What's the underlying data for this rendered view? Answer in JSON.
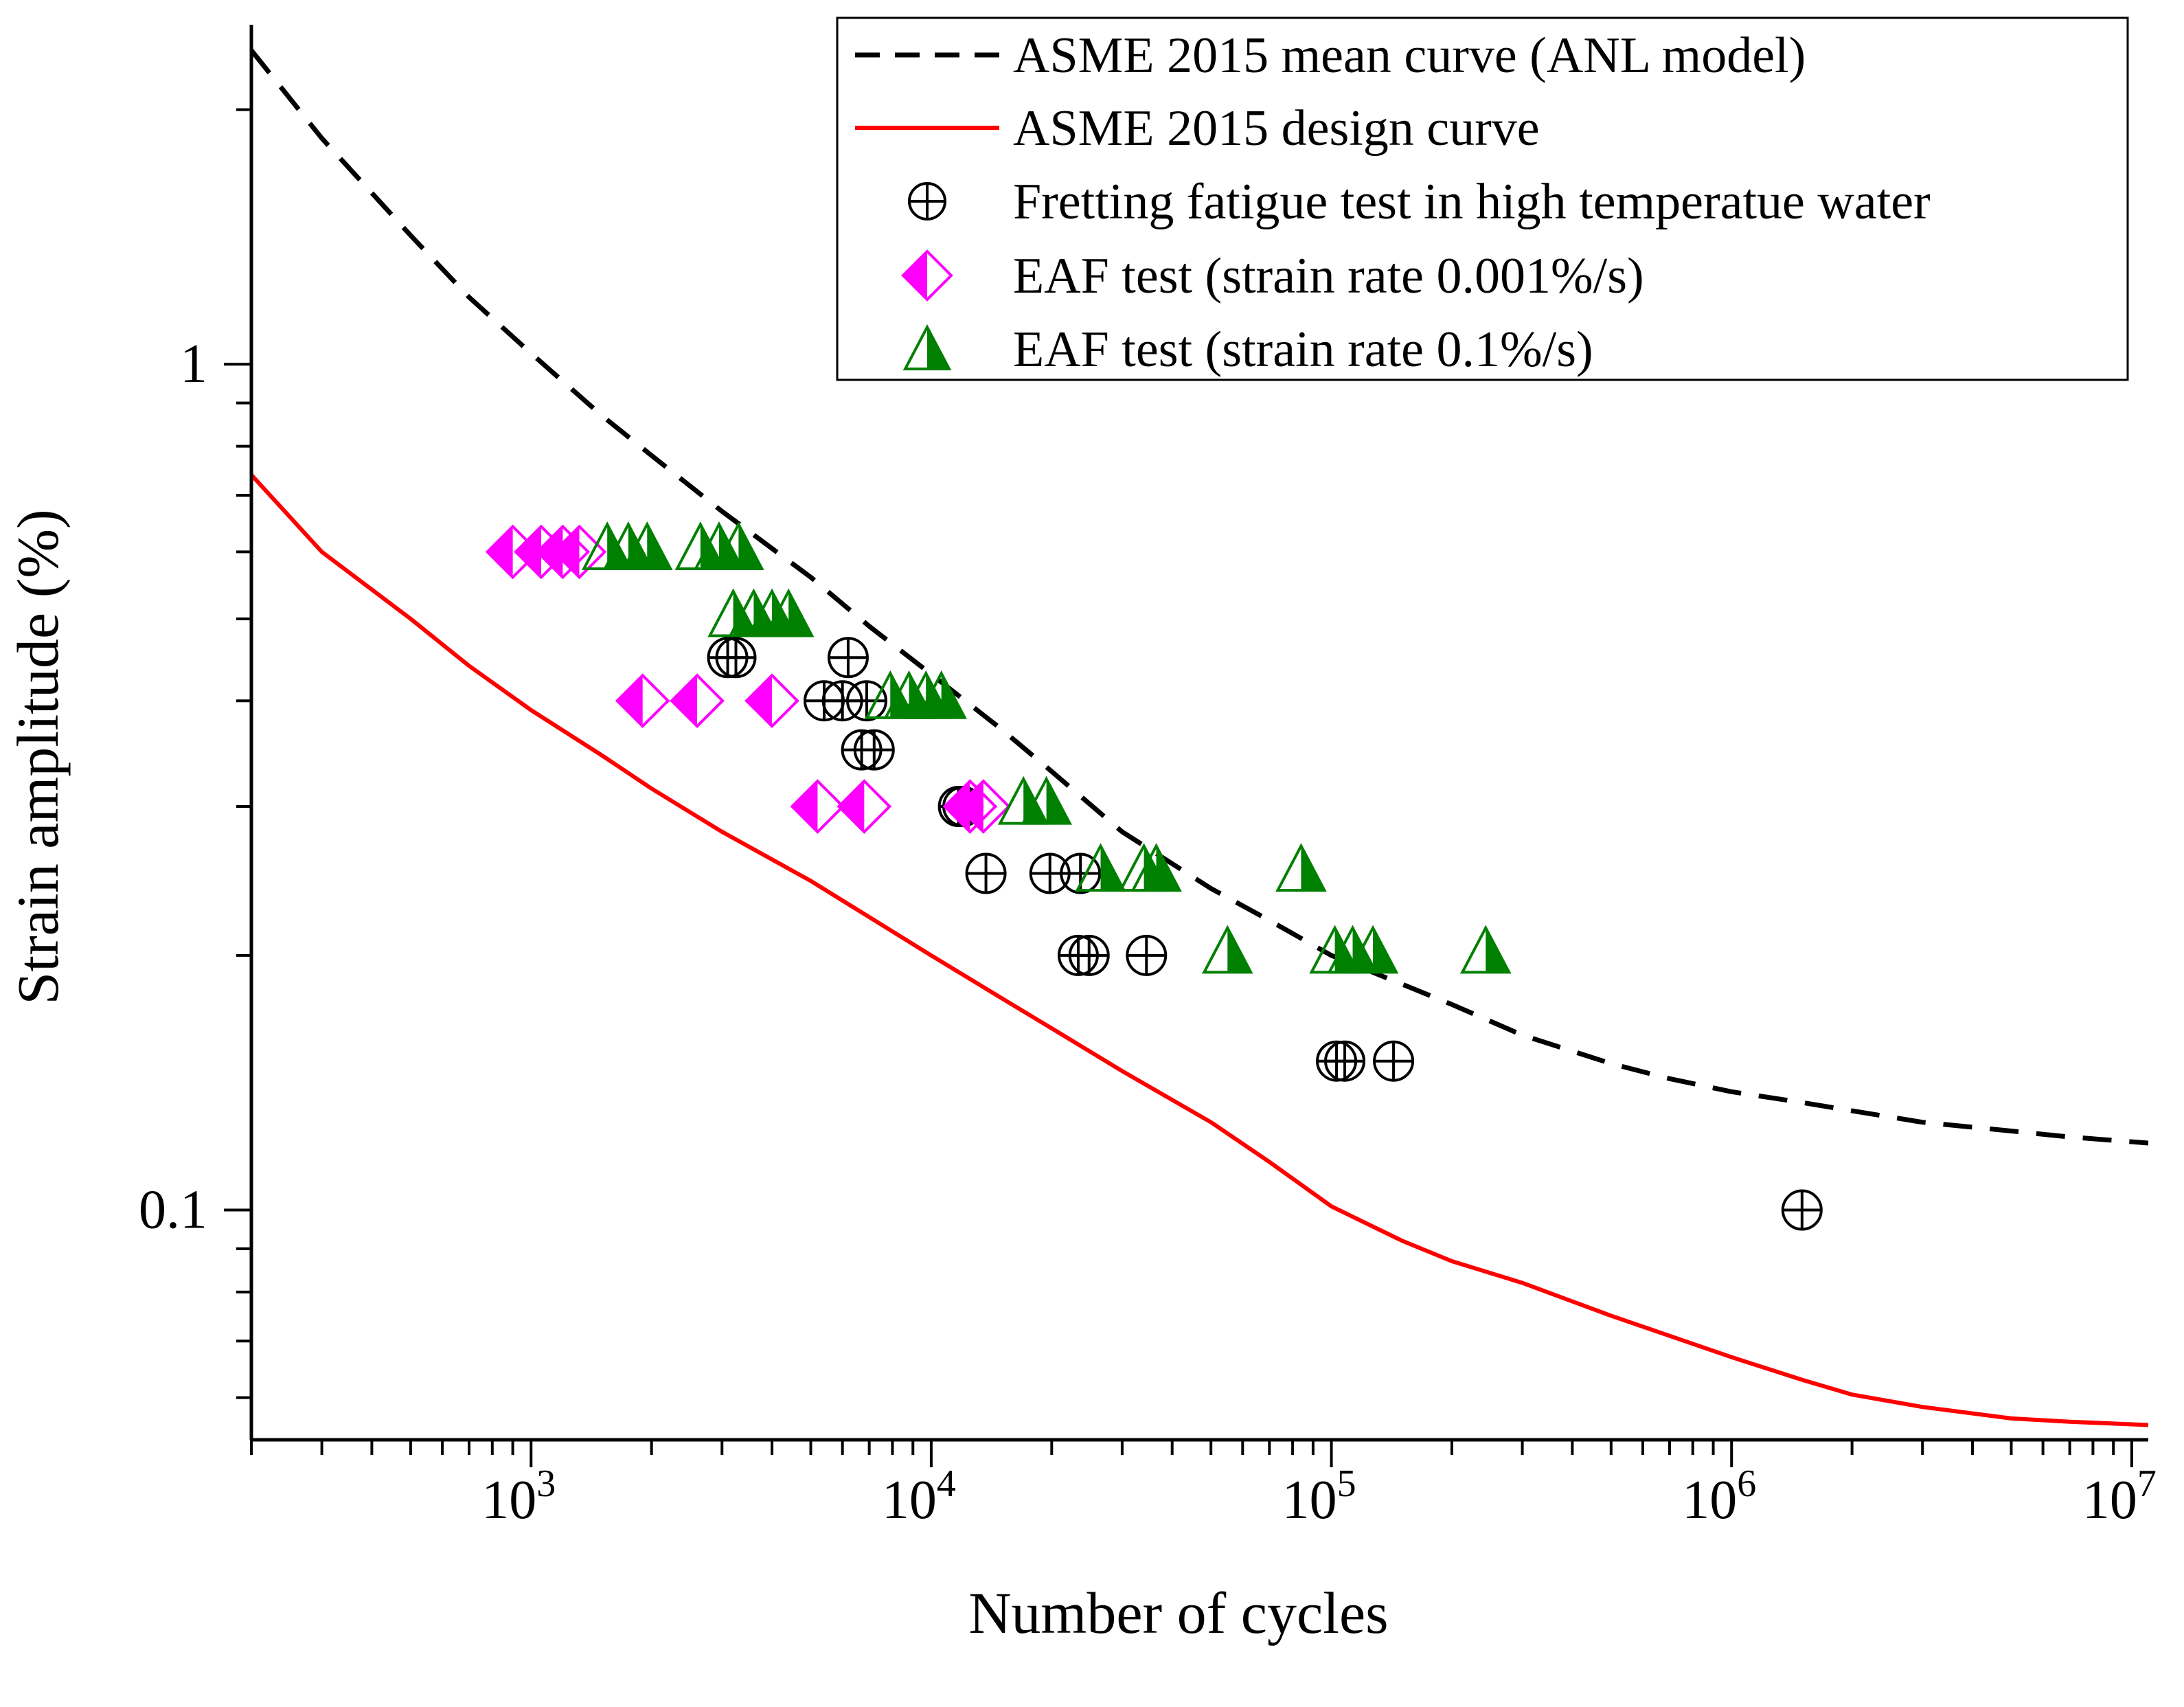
{
  "chart_data": {
    "type": "scatter",
    "title": "",
    "xlabel": "Number of cycles",
    "ylabel": "Strain amplitude (%)",
    "xscale": "log",
    "yscale": "log",
    "xlim": [
      200,
      11000000
    ],
    "ylim": [
      0.0535,
      2.52
    ],
    "x_ticks": [
      {
        "value": 1000,
        "base": "10",
        "exp": "3"
      },
      {
        "value": 10000,
        "base": "10",
        "exp": "4"
      },
      {
        "value": 100000,
        "base": "10",
        "exp": "5"
      },
      {
        "value": 1000000,
        "base": "10",
        "exp": "6"
      },
      {
        "value": 10000000,
        "base": "10",
        "exp": "7"
      }
    ],
    "y_ticks": [
      {
        "value": 1,
        "label": "1"
      },
      {
        "value": 0.1,
        "label": "0.1"
      }
    ],
    "grid": false,
    "legend_position": "top-right",
    "colors": {
      "mean_curve": "#000000",
      "design_curve": "#ff0000",
      "eaf_slow": "#ff00ff",
      "eaf_fast": "#008000",
      "fretting": "#000000"
    },
    "series": [
      {
        "name": "ASME 2015 mean curve (ANL model)",
        "kind": "line",
        "style": "dashed",
        "color": "#000000",
        "points": [
          [
            200,
            2.35
          ],
          [
            300,
            1.85
          ],
          [
            500,
            1.42
          ],
          [
            700,
            1.2
          ],
          [
            1000,
            1.03
          ],
          [
            1500,
            0.87
          ],
          [
            2000,
            0.78
          ],
          [
            3000,
            0.67
          ],
          [
            5000,
            0.56
          ],
          [
            7000,
            0.49
          ],
          [
            10000,
            0.43
          ],
          [
            15000,
            0.37
          ],
          [
            20000,
            0.33
          ],
          [
            30000,
            0.28
          ],
          [
            50000,
            0.24
          ],
          [
            70000,
            0.22
          ],
          [
            100000,
            0.2
          ],
          [
            150000,
            0.185
          ],
          [
            200000,
            0.175
          ],
          [
            300000,
            0.161
          ],
          [
            500000,
            0.149
          ],
          [
            700000,
            0.143
          ],
          [
            1000000,
            0.138
          ],
          [
            1500000,
            0.134
          ],
          [
            2000000,
            0.131
          ],
          [
            3000000,
            0.127
          ],
          [
            5000000,
            0.124
          ],
          [
            7000000,
            0.122
          ],
          [
            11000000,
            0.12
          ]
        ]
      },
      {
        "name": "ASME 2015 design curve",
        "kind": "line",
        "style": "solid",
        "color": "#ff0000",
        "points": [
          [
            200,
            0.74
          ],
          [
            300,
            0.6
          ],
          [
            500,
            0.5
          ],
          [
            700,
            0.44
          ],
          [
            1000,
            0.39
          ],
          [
            1500,
            0.345
          ],
          [
            2000,
            0.315
          ],
          [
            3000,
            0.28
          ],
          [
            5000,
            0.245
          ],
          [
            7000,
            0.222
          ],
          [
            10000,
            0.2
          ],
          [
            15000,
            0.178
          ],
          [
            20000,
            0.164
          ],
          [
            30000,
            0.146
          ],
          [
            50000,
            0.127
          ],
          [
            70000,
            0.114
          ],
          [
            100000,
            0.101
          ],
          [
            150000,
            0.092
          ],
          [
            200000,
            0.087
          ],
          [
            300000,
            0.082
          ],
          [
            500000,
            0.075
          ],
          [
            700000,
            0.071
          ],
          [
            1000000,
            0.067
          ],
          [
            1500000,
            0.063
          ],
          [
            2000000,
            0.0605
          ],
          [
            3000000,
            0.0585
          ],
          [
            5000000,
            0.0567
          ],
          [
            7000000,
            0.0562
          ],
          [
            11000000,
            0.0557
          ]
        ]
      },
      {
        "name": "Fretting fatigue test in high temperatue water",
        "kind": "marker",
        "marker": "circle-plus",
        "color": "#000000",
        "points": [
          [
            3100,
            0.45
          ],
          [
            3250,
            0.45
          ],
          [
            6200,
            0.45
          ],
          [
            5400,
            0.4
          ],
          [
            6000,
            0.4
          ],
          [
            6900,
            0.4
          ],
          [
            6700,
            0.35
          ],
          [
            7200,
            0.35
          ],
          [
            11700,
            0.3
          ],
          [
            12000,
            0.3
          ],
          [
            13700,
            0.25
          ],
          [
            19800,
            0.25
          ],
          [
            23600,
            0.25
          ],
          [
            23300,
            0.2
          ],
          [
            24800,
            0.2
          ],
          [
            34500,
            0.2
          ],
          [
            103000,
            0.15
          ],
          [
            108000,
            0.15
          ],
          [
            143000,
            0.15
          ],
          [
            1500000,
            0.1
          ]
        ]
      },
      {
        "name": "EAF test (strain rate 0.001%/s)",
        "kind": "marker",
        "marker": "half-filled-diamond",
        "color": "#ff00ff",
        "points": [
          [
            900,
            0.6
          ],
          [
            1060,
            0.6
          ],
          [
            1200,
            0.6
          ],
          [
            1320,
            0.6
          ],
          [
            1900,
            0.4
          ],
          [
            2600,
            0.4
          ],
          [
            4000,
            0.4
          ],
          [
            5200,
            0.3
          ],
          [
            6800,
            0.3
          ],
          [
            12500,
            0.3
          ],
          [
            13500,
            0.3
          ]
        ]
      },
      {
        "name": "EAF test (strain rate 0.1%/s)",
        "kind": "marker",
        "marker": "half-filled-triangle",
        "color": "#008000",
        "points": [
          [
            1550,
            0.6
          ],
          [
            1750,
            0.6
          ],
          [
            1950,
            0.6
          ],
          [
            2650,
            0.6
          ],
          [
            2950,
            0.6
          ],
          [
            3300,
            0.6
          ],
          [
            3200,
            0.5
          ],
          [
            3600,
            0.5
          ],
          [
            4000,
            0.5
          ],
          [
            4400,
            0.5
          ],
          [
            7900,
            0.4
          ],
          [
            8800,
            0.4
          ],
          [
            9700,
            0.4
          ],
          [
            10600,
            0.4
          ],
          [
            17000,
            0.3
          ],
          [
            19400,
            0.3
          ],
          [
            26500,
            0.25
          ],
          [
            34000,
            0.25
          ],
          [
            36500,
            0.25
          ],
          [
            84000,
            0.25
          ],
          [
            55000,
            0.2
          ],
          [
            102000,
            0.2
          ],
          [
            113000,
            0.2
          ],
          [
            127000,
            0.2
          ],
          [
            243000,
            0.2
          ]
        ]
      }
    ]
  }
}
